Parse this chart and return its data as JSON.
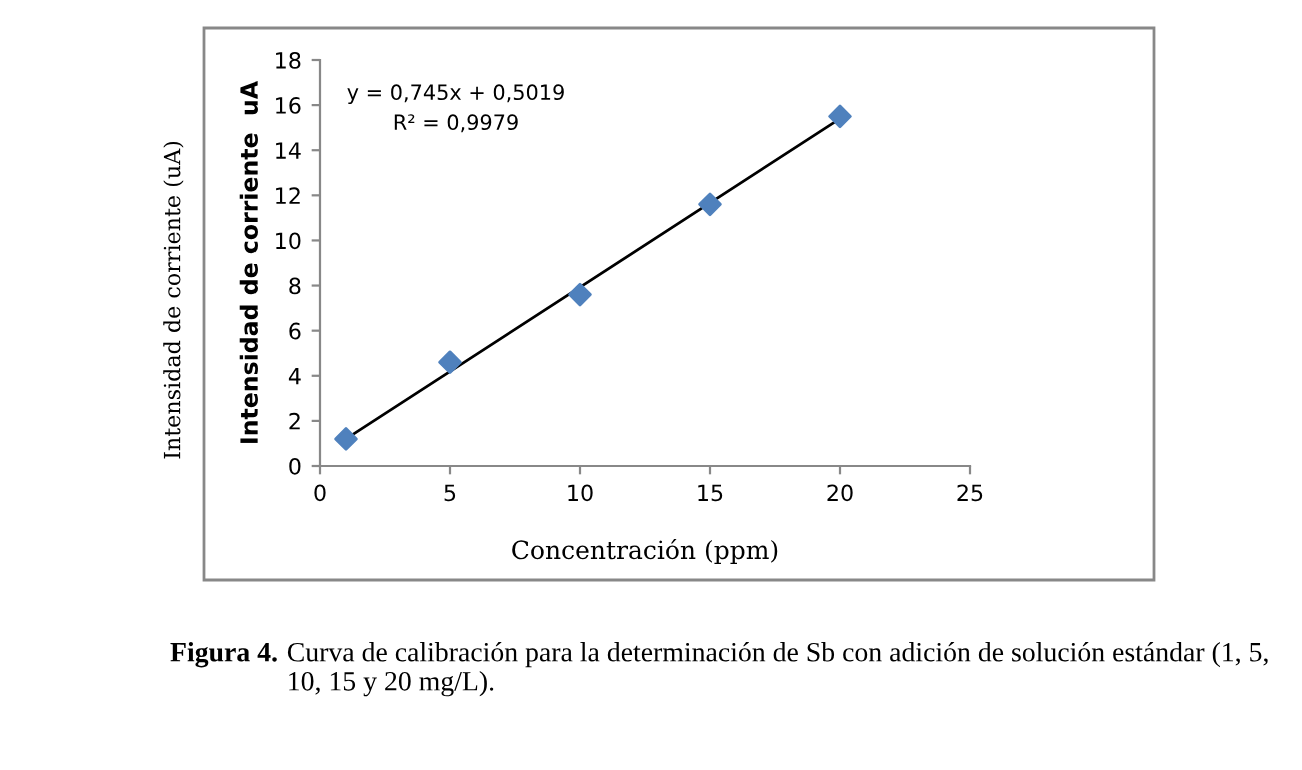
{
  "chart_data": {
    "type": "scatter",
    "xlabel": "Concentración (ppm)",
    "ylabel": "Intensidad de corriente  uA",
    "annotations": [
      "y = 0,745x + 0,5019",
      "R² = 0,9979",
      "Intensidad de corriente (uA)",
      "Figura 4.",
      "Curva de calibración para la determinación de Sb con adición de solución estándar (1, 5, 10, 15 y 20 mg/L)."
    ],
    "x": [
      1,
      5,
      10,
      15,
      20
    ],
    "series": [
      {
        "color": "#4f81bd",
        "marker": "diamond",
        "values": [
          1.2,
          4.6,
          7.6,
          11.6,
          15.5
        ]
      },
      {
        "type": "line",
        "color": "#000000",
        "marker": "none",
        "line_style": "solid",
        "x": [
          1,
          20
        ],
        "values": [
          1.2,
          15.4
        ]
      }
    ],
    "xlim": [
      0,
      25
    ],
    "xticks": [
      0,
      5,
      10,
      15,
      20,
      25
    ],
    "ylim": [
      0,
      18
    ],
    "yticks": [
      0,
      2,
      4,
      6,
      8,
      10,
      12,
      14,
      16,
      18
    ],
    "grid": false,
    "legend": false
  }
}
